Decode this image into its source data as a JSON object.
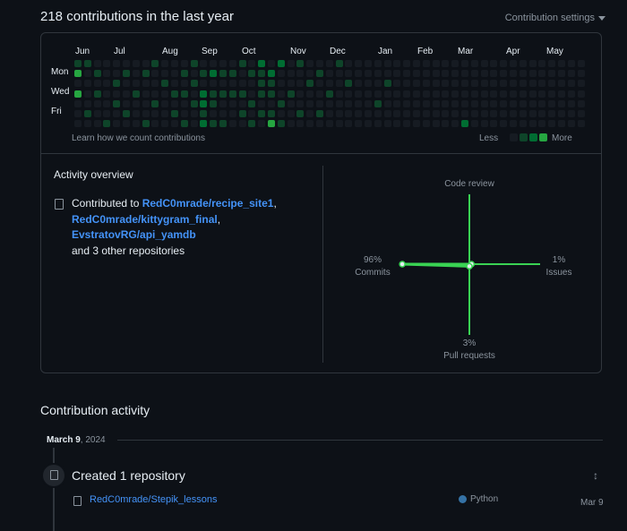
{
  "header": {
    "title": "218 contributions in the last year",
    "settings_label": "Contribution settings"
  },
  "calendar": {
    "months": [
      "Jun",
      "Jul",
      "Aug",
      "Sep",
      "Oct",
      "Nov",
      "Dec",
      "Jan",
      "Feb",
      "Mar",
      "Apr",
      "May"
    ],
    "days": [
      "Mon",
      "Wed",
      "Fri"
    ],
    "learn_link": "Learn how we count contributions",
    "less_label": "Less",
    "more_label": "More",
    "palette": [
      "#161b22",
      "#0e4429",
      "#006d32",
      "#26a641",
      "#39d353"
    ],
    "weeks": 53,
    "active": [
      {
        "w": 0,
        "d": 1,
        "l": 3
      },
      {
        "w": 0,
        "d": 3,
        "l": 3
      },
      {
        "w": 0,
        "d": 0,
        "l": 1
      },
      {
        "w": 1,
        "d": 0,
        "l": 1
      },
      {
        "w": 1,
        "d": 5,
        "l": 1
      },
      {
        "w": 2,
        "d": 1,
        "l": 1
      },
      {
        "w": 2,
        "d": 3,
        "l": 1
      },
      {
        "w": 3,
        "d": 6,
        "l": 1
      },
      {
        "w": 4,
        "d": 2,
        "l": 1
      },
      {
        "w": 4,
        "d": 4,
        "l": 1
      },
      {
        "w": 5,
        "d": 1,
        "l": 1
      },
      {
        "w": 5,
        "d": 5,
        "l": 1
      },
      {
        "w": 6,
        "d": 3,
        "l": 1
      },
      {
        "w": 7,
        "d": 1,
        "l": 1
      },
      {
        "w": 7,
        "d": 6,
        "l": 1
      },
      {
        "w": 8,
        "d": 0,
        "l": 1
      },
      {
        "w": 8,
        "d": 4,
        "l": 1
      },
      {
        "w": 9,
        "d": 2,
        "l": 1
      },
      {
        "w": 10,
        "d": 3,
        "l": 1
      },
      {
        "w": 10,
        "d": 5,
        "l": 1
      },
      {
        "w": 11,
        "d": 1,
        "l": 1
      },
      {
        "w": 11,
        "d": 3,
        "l": 1
      },
      {
        "w": 11,
        "d": 6,
        "l": 1
      },
      {
        "w": 12,
        "d": 0,
        "l": 1
      },
      {
        "w": 12,
        "d": 2,
        "l": 1
      },
      {
        "w": 12,
        "d": 4,
        "l": 1
      },
      {
        "w": 13,
        "d": 1,
        "l": 1
      },
      {
        "w": 13,
        "d": 3,
        "l": 2
      },
      {
        "w": 13,
        "d": 4,
        "l": 2
      },
      {
        "w": 13,
        "d": 5,
        "l": 1
      },
      {
        "w": 13,
        "d": 6,
        "l": 2
      },
      {
        "w": 14,
        "d": 1,
        "l": 2
      },
      {
        "w": 14,
        "d": 3,
        "l": 1
      },
      {
        "w": 14,
        "d": 4,
        "l": 1
      },
      {
        "w": 14,
        "d": 6,
        "l": 1
      },
      {
        "w": 15,
        "d": 1,
        "l": 1
      },
      {
        "w": 15,
        "d": 3,
        "l": 1
      },
      {
        "w": 15,
        "d": 6,
        "l": 1
      },
      {
        "w": 16,
        "d": 1,
        "l": 1
      },
      {
        "w": 16,
        "d": 3,
        "l": 1
      },
      {
        "w": 17,
        "d": 0,
        "l": 1
      },
      {
        "w": 17,
        "d": 3,
        "l": 1
      },
      {
        "w": 17,
        "d": 5,
        "l": 1
      },
      {
        "w": 18,
        "d": 1,
        "l": 1
      },
      {
        "w": 18,
        "d": 4,
        "l": 1
      },
      {
        "w": 18,
        "d": 6,
        "l": 1
      },
      {
        "w": 19,
        "d": 0,
        "l": 2
      },
      {
        "w": 19,
        "d": 1,
        "l": 1
      },
      {
        "w": 19,
        "d": 2,
        "l": 1
      },
      {
        "w": 19,
        "d": 3,
        "l": 1
      },
      {
        "w": 19,
        "d": 5,
        "l": 1
      },
      {
        "w": 20,
        "d": 1,
        "l": 2
      },
      {
        "w": 20,
        "d": 2,
        "l": 1
      },
      {
        "w": 20,
        "d": 3,
        "l": 1
      },
      {
        "w": 20,
        "d": 5,
        "l": 1
      },
      {
        "w": 20,
        "d": 6,
        "l": 3
      },
      {
        "w": 21,
        "d": 0,
        "l": 2
      },
      {
        "w": 21,
        "d": 4,
        "l": 1
      },
      {
        "w": 21,
        "d": 6,
        "l": 1
      },
      {
        "w": 22,
        "d": 3,
        "l": 1
      },
      {
        "w": 23,
        "d": 0,
        "l": 1
      },
      {
        "w": 23,
        "d": 5,
        "l": 1
      },
      {
        "w": 24,
        "d": 2,
        "l": 1
      },
      {
        "w": 25,
        "d": 1,
        "l": 1
      },
      {
        "w": 25,
        "d": 5,
        "l": 1
      },
      {
        "w": 26,
        "d": 3,
        "l": 1
      },
      {
        "w": 27,
        "d": 0,
        "l": 1
      },
      {
        "w": 28,
        "d": 2,
        "l": 1
      },
      {
        "w": 31,
        "d": 4,
        "l": 1
      },
      {
        "w": 32,
        "d": 2,
        "l": 1
      },
      {
        "w": 40,
        "d": 6,
        "l": 2
      }
    ]
  },
  "overview": {
    "title": "Activity overview",
    "prefix": "Contributed to ",
    "repos": [
      "RedC0mrade/recipe_site1",
      "RedC0mrade/kittygram_final",
      "EvstratovRG/api_yamdb"
    ],
    "others": "and 3 other repositories"
  },
  "activity_graph": {
    "code_review": {
      "label": "Code review",
      "percent": ""
    },
    "commits": {
      "label": "Commits",
      "percent": "96%",
      "value": 96
    },
    "issues": {
      "label": "Issues",
      "percent": "1%",
      "value": 1
    },
    "pull_requests": {
      "label": "Pull requests",
      "percent": "3%",
      "value": 3
    },
    "color": "#39d353"
  },
  "contribution_activity": {
    "title": "Contribution activity",
    "date_main": "March 9",
    "date_year": ", 2024",
    "event_title": "Created 1 repository",
    "repo": "RedC0mrade/Stepik_lessons",
    "language": "Python",
    "language_color": "#3572A5",
    "event_date": "Mar 9"
  }
}
